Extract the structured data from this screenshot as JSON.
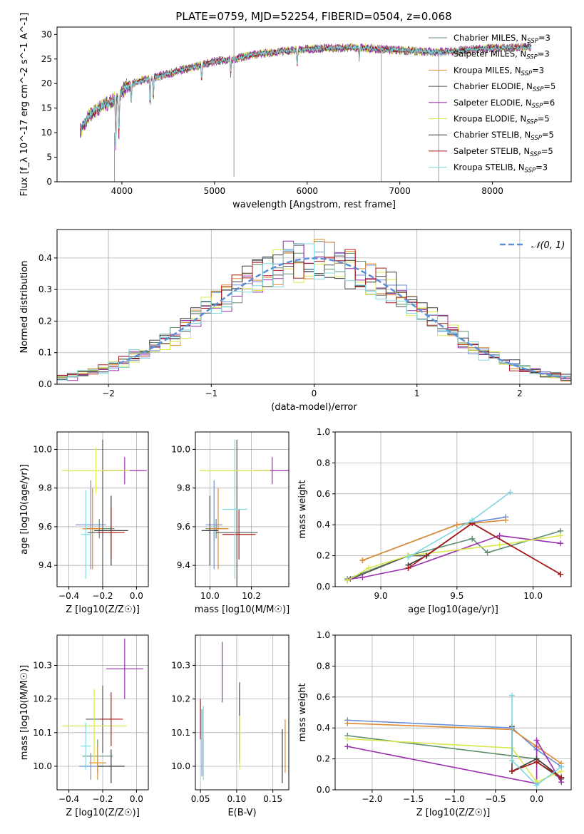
{
  "title": "PLATE=0759, MJD=52254, FIBERID=0504, z=0.068",
  "colors": {
    "chabrier_miles": "#5f8f6f",
    "salpeter_miles": "#6a8fd6",
    "kroupa_miles": "#e08a2e",
    "chabrier_elodie": "#555555",
    "salpeter_elodie": "#9b2fae",
    "kroupa_elodie": "#d9e84e",
    "chabrier_stelib": "#3a3a3a",
    "salpeter_stelib": "#b01a1a",
    "kroupa_stelib": "#7fd8df",
    "grid": "#b0b0b0"
  },
  "chart_data": [
    {
      "id": "spectrum",
      "type": "line",
      "xlabel": "wavelength [Angstrom, rest frame]",
      "ylabel": "Flux [f_λ 10^-17 erg cm^-2 s^-1 A^-1]",
      "xlim": [
        3300,
        8850
      ],
      "ylim": [
        0,
        31.5
      ],
      "xticks": [
        4000,
        5000,
        6000,
        7000,
        8000
      ],
      "yticks": [
        0,
        5,
        10,
        15,
        20,
        25,
        30
      ],
      "grid": false,
      "legend_position": "right",
      "legend": [
        {
          "label": "Chabrier MILES, N_SSP=3",
          "color_key": "chabrier_miles"
        },
        {
          "label": "Salpeter MILES, N_SSP=3",
          "color_key": "salpeter_miles"
        },
        {
          "label": "Kroupa MILES, N_SSP=3",
          "color_key": "kroupa_miles"
        },
        {
          "label": "Chabrier ELODIE, N_SSP=5",
          "color_key": "chabrier_elodie"
        },
        {
          "label": "Salpeter ELODIE, N_SSP=6",
          "color_key": "salpeter_elodie"
        },
        {
          "label": "Kroupa ELODIE, N_SSP=5",
          "color_key": "kroupa_elodie"
        },
        {
          "label": "Chabrier STELIB, N_SSP=5",
          "color_key": "chabrier_stelib"
        },
        {
          "label": "Salpeter STELIB, N_SSP=5",
          "color_key": "salpeter_stelib"
        },
        {
          "label": "Kroupa STELIB, N_SSP=3",
          "color_key": "kroupa_stelib"
        }
      ],
      "continuum": [
        [
          3550,
          10.5
        ],
        [
          3650,
          13.5
        ],
        [
          3750,
          15
        ],
        [
          3850,
          16
        ],
        [
          3950,
          17
        ],
        [
          4050,
          19.5
        ],
        [
          4200,
          20.5
        ],
        [
          4400,
          21.5
        ],
        [
          4600,
          22.5
        ],
        [
          4800,
          23.5
        ],
        [
          5000,
          24.5
        ],
        [
          5200,
          25
        ],
        [
          5400,
          25.8
        ],
        [
          5600,
          26.3
        ],
        [
          5800,
          26.7
        ],
        [
          6000,
          27
        ],
        [
          6200,
          27.2
        ],
        [
          6400,
          27.3
        ],
        [
          6600,
          27.3
        ],
        [
          6800,
          27
        ],
        [
          7000,
          26.8
        ],
        [
          7200,
          26.6
        ],
        [
          7400,
          26.4
        ],
        [
          7600,
          26.6
        ],
        [
          7800,
          27
        ],
        [
          8000,
          27.2
        ],
        [
          8200,
          27.3
        ],
        [
          8400,
          27.4
        ]
      ],
      "absorption_features": [
        [
          3934,
          9
        ],
        [
          3968,
          8
        ],
        [
          4102,
          3
        ],
        [
          4304,
          5
        ],
        [
          4340,
          4
        ],
        [
          4861,
          3
        ],
        [
          5175,
          3
        ],
        [
          5893,
          3
        ],
        [
          6563,
          2
        ],
        [
          8500,
          2
        ],
        [
          8542,
          3
        ],
        [
          8662,
          2
        ]
      ],
      "spikes": [
        [
          5210,
          1,
          31.5
        ],
        [
          6800,
          0,
          27
        ],
        [
          7420,
          0,
          27
        ],
        [
          3920,
          0,
          10
        ]
      ]
    },
    {
      "id": "residual-hist",
      "type": "line",
      "xlabel": "(data-model)/error",
      "ylabel": "Normed distribution",
      "xlim": [
        -2.5,
        2.5
      ],
      "ylim": [
        0,
        0.49
      ],
      "xticks": [
        -2,
        -1,
        0,
        1,
        2
      ],
      "yticks": [
        0.0,
        0.1,
        0.2,
        0.3,
        0.4
      ],
      "grid": true,
      "legend_position": "top-right",
      "reference": {
        "label": "𝒩(0, 1)",
        "mean": 0,
        "sigma": 1,
        "style": "dashed"
      },
      "bin_width": 0.1
    },
    {
      "id": "age-vs-Z",
      "type": "scatter",
      "xlabel": "Z [log10(Z/Z☉)]",
      "ylabel": "age [log10(age/yr)]",
      "xlim": [
        -0.47,
        0.07
      ],
      "ylim": [
        9.29,
        10.09
      ],
      "xticks": [
        -0.4,
        -0.2,
        0.0
      ],
      "yticks": [
        9.4,
        9.6,
        9.8,
        10.0
      ],
      "grid": true,
      "points": [
        {
          "color_key": "chabrier_miles",
          "x": -0.22,
          "xerr": 0.09,
          "y": 9.59,
          "yerr": 0.05
        },
        {
          "color_key": "salpeter_miles",
          "x": -0.27,
          "xerr": 0.09,
          "y": 9.61,
          "yerr": 0.23
        },
        {
          "color_key": "kroupa_miles",
          "x": -0.26,
          "xerr": 0.06,
          "y": 9.59,
          "yerr": 0.21
        },
        {
          "color_key": "chabrier_elodie",
          "x": -0.2,
          "xerr": 0.09,
          "y": 9.57,
          "yerr": 0.48
        },
        {
          "color_key": "salpeter_elodie",
          "x": -0.07,
          "xerr": 0.13,
          "y": 9.89,
          "yerr": 0.07
        },
        {
          "color_key": "kroupa_elodie",
          "x": -0.24,
          "xerr": 0.2,
          "y": 9.89,
          "yerr": 0.12
        },
        {
          "color_key": "chabrier_stelib",
          "x": -0.15,
          "xerr": 0.1,
          "y": 9.58,
          "yerr": 0.18
        },
        {
          "color_key": "salpeter_stelib",
          "x": -0.15,
          "xerr": 0.08,
          "y": 9.57,
          "yerr": 0.13
        },
        {
          "color_key": "kroupa_stelib",
          "x": -0.3,
          "xerr": 0.03,
          "y": 9.56,
          "yerr": 0.23
        }
      ]
    },
    {
      "id": "age-vs-mass",
      "type": "scatter",
      "xlabel": "mass [log10(M/M☉)]",
      "ylabel": "",
      "xlim": [
        9.93,
        10.38
      ],
      "ylim": [
        9.29,
        10.09
      ],
      "xticks": [
        10.0,
        10.2
      ],
      "yticks": [
        9.4,
        9.6,
        9.8,
        10.0
      ],
      "grid": true,
      "points": [
        {
          "color_key": "chabrier_miles",
          "x": 10.03,
          "xerr": 0.05,
          "y": 9.59,
          "yerr": 0.05
        },
        {
          "color_key": "salpeter_miles",
          "x": 10.02,
          "xerr": 0.04,
          "y": 9.61,
          "yerr": 0.23
        },
        {
          "color_key": "kroupa_miles",
          "x": 10.04,
          "xerr": 0.05,
          "y": 9.59,
          "yerr": 0.21
        },
        {
          "color_key": "chabrier_elodie",
          "x": 10.13,
          "xerr": 0.1,
          "y": 9.57,
          "yerr": 0.48
        },
        {
          "color_key": "salpeter_elodie",
          "x": 10.3,
          "xerr": 0.09,
          "y": 9.89,
          "yerr": 0.07
        },
        {
          "color_key": "kroupa_elodie",
          "x": 10.12,
          "xerr": 0.17,
          "y": 9.89,
          "yerr": 0.12
        },
        {
          "color_key": "chabrier_stelib",
          "x": 10.0,
          "xerr": 0.04,
          "y": 9.58,
          "yerr": 0.18
        },
        {
          "color_key": "salpeter_stelib",
          "x": 10.14,
          "xerr": 0.08,
          "y": 9.56,
          "yerr": 0.13
        },
        {
          "color_key": "kroupa_stelib",
          "x": 10.12,
          "xerr": 0.06,
          "y": 9.69,
          "yerr": 0.36
        }
      ]
    },
    {
      "id": "massweight-vs-age",
      "type": "line",
      "xlabel": "age [log10(age/yr)]",
      "ylabel": "mass weight",
      "xlim": [
        8.7,
        10.25
      ],
      "ylim": [
        0,
        1.0
      ],
      "xticks": [
        9.0,
        9.5,
        10.0
      ],
      "yticks": [
        0.0,
        0.2,
        0.4,
        0.6,
        0.8,
        1.0
      ],
      "grid": true,
      "series": [
        {
          "color_key": "chabrier_miles",
          "points": [
            [
              8.78,
              0.05
            ],
            [
              9.18,
              0.2
            ],
            [
              9.6,
              0.31
            ],
            [
              9.7,
              0.22
            ],
            [
              10.18,
              0.36
            ]
          ]
        },
        {
          "color_key": "salpeter_miles",
          "points": [
            [
              8.88,
              0.17
            ],
            [
              9.5,
              0.4
            ],
            [
              9.82,
              0.45
            ]
          ]
        },
        {
          "color_key": "kroupa_miles",
          "points": [
            [
              8.88,
              0.17
            ],
            [
              9.5,
              0.4
            ],
            [
              9.82,
              0.43
            ]
          ]
        },
        {
          "color_key": "chabrier_elodie",
          "points": [
            [
              8.78,
              0.04
            ],
            [
              9.18,
              0.2
            ],
            [
              9.3,
              0.2
            ],
            [
              9.6,
              0.41
            ],
            [
              10.18,
              0.08
            ]
          ]
        },
        {
          "color_key": "salpeter_elodie",
          "points": [
            [
              8.8,
              0.05
            ],
            [
              8.88,
              0.06
            ],
            [
              9.18,
              0.12
            ],
            [
              9.78,
              0.33
            ],
            [
              10.18,
              0.28
            ]
          ]
        },
        {
          "color_key": "kroupa_elodie",
          "points": [
            [
              8.78,
              0.04
            ],
            [
              8.92,
              0.12
            ],
            [
              9.18,
              0.2
            ],
            [
              9.78,
              0.27
            ],
            [
              10.18,
              0.33
            ]
          ]
        },
        {
          "color_key": "chabrier_stelib",
          "points": [
            [
              9.18,
              0.14
            ],
            [
              9.3,
              0.2
            ],
            [
              9.6,
              0.41
            ],
            [
              10.18,
              0.08
            ]
          ]
        },
        {
          "color_key": "salpeter_stelib",
          "points": [
            [
              9.18,
              0.12
            ],
            [
              9.6,
              0.41
            ],
            [
              10.18,
              0.08
            ]
          ]
        },
        {
          "color_key": "kroupa_stelib",
          "points": [
            [
              9.18,
              0.19
            ],
            [
              9.6,
              0.43
            ],
            [
              9.85,
              0.61
            ]
          ]
        }
      ]
    },
    {
      "id": "mass-vs-Z",
      "type": "scatter",
      "xlabel": "Z [log10(Z/Z☉)]",
      "ylabel": "mass [log10(M/M☉)]",
      "xlim": [
        -0.47,
        0.07
      ],
      "ylim": [
        9.93,
        10.39
      ],
      "xticks": [
        -0.4,
        -0.2,
        0.0
      ],
      "yticks": [
        10.0,
        10.1,
        10.2,
        10.3
      ],
      "grid": true,
      "points": [
        {
          "color_key": "chabrier_miles",
          "x": -0.23,
          "xerr": 0.09,
          "y": 10.03,
          "yerr": 0.05
        },
        {
          "color_key": "salpeter_miles",
          "x": -0.27,
          "xerr": 0.07,
          "y": 10.0,
          "yerr": 0.04
        },
        {
          "color_key": "kroupa_miles",
          "x": -0.23,
          "xerr": 0.05,
          "y": 10.01,
          "yerr": 0.05
        },
        {
          "color_key": "chabrier_elodie",
          "x": -0.2,
          "xerr": 0.1,
          "y": 10.14,
          "yerr": 0.1
        },
        {
          "color_key": "salpeter_elodie",
          "x": -0.07,
          "xerr": 0.11,
          "y": 10.29,
          "yerr": 0.09
        },
        {
          "color_key": "kroupa_elodie",
          "x": -0.25,
          "xerr": 0.19,
          "y": 10.12,
          "yerr": 0.11
        },
        {
          "color_key": "chabrier_stelib",
          "x": -0.15,
          "xerr": 0.08,
          "y": 10.0,
          "yerr": 0.05
        },
        {
          "color_key": "salpeter_stelib",
          "x": -0.15,
          "xerr": 0.07,
          "y": 10.14,
          "yerr": 0.08
        },
        {
          "color_key": "kroupa_stelib",
          "x": -0.3,
          "xerr": 0.03,
          "y": 10.06,
          "yerr": 0.07
        }
      ]
    },
    {
      "id": "mass-vs-ebv",
      "type": "scatter",
      "xlabel": "E(B-V)",
      "ylabel": "",
      "xlim": [
        0.043,
        0.172
      ],
      "ylim": [
        9.93,
        10.39
      ],
      "xticks": [
        0.05,
        0.1,
        0.15
      ],
      "yticks": [
        10.0,
        10.1,
        10.2,
        10.3
      ],
      "grid": true,
      "points": [
        {
          "color_key": "chabrier_miles",
          "x": 0.104,
          "y": 10.12,
          "yerr": 0.11
        },
        {
          "color_key": "salpeter_miles",
          "x": 0.052,
          "y": 10.07,
          "yerr": 0.1
        },
        {
          "color_key": "kroupa_miles",
          "x": 0.167,
          "y": 10.06,
          "yerr": 0.08
        },
        {
          "color_key": "chabrier_elodie",
          "x": 0.104,
          "y": 10.13,
          "yerr": 0.12
        },
        {
          "color_key": "salpeter_elodie",
          "x": 0.08,
          "y": 10.28,
          "yerr": 0.09
        },
        {
          "color_key": "kroupa_elodie",
          "x": 0.104,
          "y": 10.07,
          "yerr": 0.08
        },
        {
          "color_key": "chabrier_stelib",
          "x": 0.163,
          "y": 10.03,
          "yerr": 0.08
        },
        {
          "color_key": "salpeter_stelib",
          "x": 0.05,
          "y": 10.14,
          "yerr": 0.06
        },
        {
          "color_key": "kroupa_stelib",
          "x": 0.054,
          "y": 10.07,
          "yerr": 0.11
        }
      ]
    },
    {
      "id": "massweight-vs-Z",
      "type": "line",
      "xlabel": "Z [log10(Z/Z☉)]",
      "ylabel": "mass weight",
      "xlim": [
        -2.45,
        0.42
      ],
      "ylim": [
        0,
        1.0
      ],
      "xticks": [
        -2.0,
        -1.5,
        -1.0,
        -0.5,
        0.0
      ],
      "yticks": [
        0.0,
        0.2,
        0.4,
        0.6,
        0.8,
        1.0
      ],
      "grid": true,
      "series": [
        {
          "color_key": "chabrier_miles",
          "points": [
            [
              -2.3,
              0.35
            ],
            [
              -0.3,
              0.22
            ],
            [
              0.0,
              0.2
            ],
            [
              0.3,
              0.08
            ]
          ]
        },
        {
          "color_key": "salpeter_miles",
          "points": [
            [
              -2.3,
              0.45
            ],
            [
              -0.3,
              0.4
            ],
            [
              0.0,
              0.26
            ],
            [
              0.3,
              0.15
            ]
          ]
        },
        {
          "color_key": "kroupa_miles",
          "points": [
            [
              -2.3,
              0.43
            ],
            [
              -0.3,
              0.39
            ],
            [
              0.0,
              0.28
            ],
            [
              0.3,
              0.17
            ]
          ]
        },
        {
          "color_key": "chabrier_elodie",
          "points": [
            [
              -0.3,
              0.12
            ],
            [
              0.0,
              0.18
            ],
            [
              0.3,
              0.07
            ]
          ]
        },
        {
          "color_key": "salpeter_elodie",
          "points": [
            [
              -2.3,
              0.28
            ],
            [
              0.0,
              0.04
            ],
            [
              0.0,
              0.32
            ],
            [
              0.3,
              0.05
            ]
          ]
        },
        {
          "color_key": "kroupa_elodie",
          "points": [
            [
              -2.3,
              0.33
            ],
            [
              -0.3,
              0.27
            ],
            [
              0.0,
              0.05
            ],
            [
              0.3,
              0.12
            ]
          ]
        },
        {
          "color_key": "chabrier_stelib",
          "points": [
            [
              -0.3,
              0.41
            ],
            [
              -0.3,
              0.12
            ],
            [
              0.0,
              0.2
            ],
            [
              0.3,
              0.08
            ]
          ]
        },
        {
          "color_key": "salpeter_stelib",
          "points": [
            [
              -0.3,
              0.12
            ],
            [
              0.0,
              0.18
            ],
            [
              0.3,
              0.08
            ]
          ]
        },
        {
          "color_key": "kroupa_stelib",
          "points": [
            [
              -0.3,
              0.61
            ],
            [
              -0.3,
              0.19
            ],
            [
              0.0,
              0.03
            ],
            [
              0.3,
              0.15
            ]
          ]
        }
      ]
    }
  ]
}
